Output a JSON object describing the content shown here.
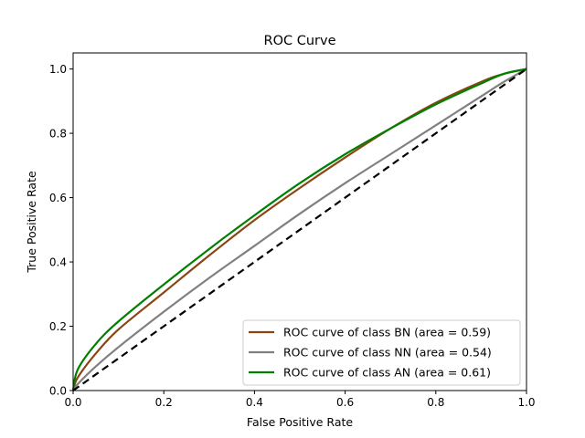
{
  "chart_data": {
    "type": "line",
    "title": "ROC Curve",
    "xlabel": "False Positive Rate",
    "ylabel": "True Positive Rate",
    "xlim": [
      0.0,
      1.0
    ],
    "ylim": [
      0.0,
      1.05
    ],
    "xticks": [
      "0.0",
      "0.2",
      "0.4",
      "0.6",
      "0.8",
      "1.0"
    ],
    "yticks": [
      "0.0",
      "0.2",
      "0.4",
      "0.6",
      "0.8",
      "1.0"
    ],
    "grid": false,
    "legend_position": "lower-right",
    "x": [
      0,
      0.01,
      0.05,
      0.1,
      0.2,
      0.3,
      0.4,
      0.5,
      0.6,
      0.7,
      0.8,
      0.9,
      0.95,
      1.0
    ],
    "series": [
      {
        "name": "ROC curve of class BN (area = 0.59)",
        "color": "#8b4513",
        "y": [
          0,
          0.04,
          0.115,
          0.19,
          0.305,
          0.42,
          0.53,
          0.63,
          0.725,
          0.815,
          0.895,
          0.96,
          0.985,
          1.0
        ]
      },
      {
        "name": "ROC curve of class NN (area = 0.54)",
        "color": "#808080",
        "y": [
          0,
          0.02,
          0.075,
          0.135,
          0.245,
          0.35,
          0.45,
          0.55,
          0.645,
          0.735,
          0.825,
          0.915,
          0.96,
          1.0
        ]
      },
      {
        "name": "ROC curve of class AN (area = 0.61)",
        "color": "#008000",
        "y": [
          0,
          0.065,
          0.145,
          0.215,
          0.33,
          0.44,
          0.545,
          0.645,
          0.735,
          0.815,
          0.89,
          0.955,
          0.985,
          1.0
        ]
      }
    ],
    "reference_line": {
      "color": "#000000",
      "style": "dashed",
      "x": [
        0,
        1
      ],
      "y": [
        0,
        1
      ]
    }
  }
}
